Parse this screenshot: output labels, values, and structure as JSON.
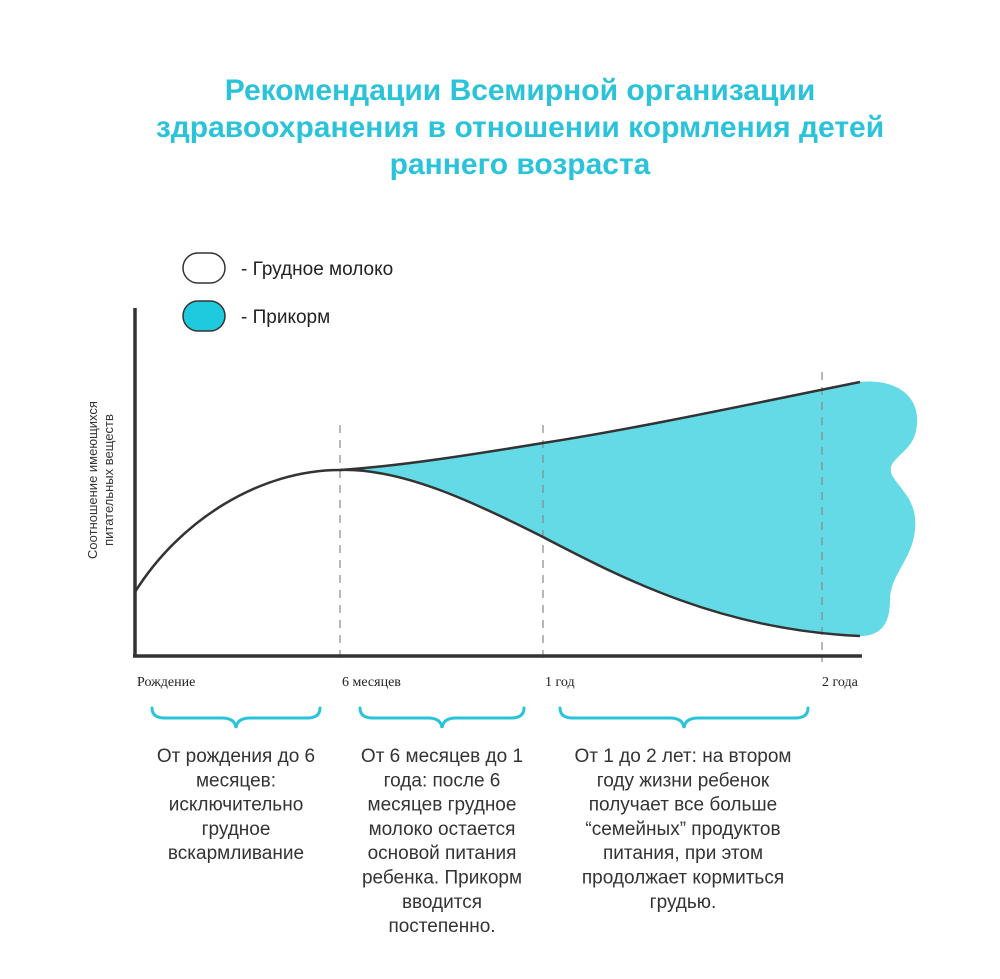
{
  "header": {
    "title_lines": [
      "Рекомендации Всемирной организации",
      "здравоохранения в отношении кормления детей",
      "раннего возраста"
    ]
  },
  "legend": [
    {
      "label": "- Грудное молоко"
    },
    {
      "label": "- Прикорм"
    }
  ],
  "y_axis_label_lines": [
    "Соотношение имеющихся",
    "питательных веществ"
  ],
  "x_labels": [
    "Рождение",
    "6 месяцев",
    "1 год",
    "2 года"
  ],
  "periods": [
    {
      "lines": [
        "От рождения до 6",
        "месяцев:",
        "исключительно",
        "грудное",
        "вскармливание"
      ]
    },
    {
      "lines": [
        "От 6 месяцев до 1",
        "года: после 6",
        "месяцев грудное",
        "молоко остается",
        "основой питания",
        "ребенка. Прикорм",
        "вводится",
        "постепенно."
      ]
    },
    {
      "lines": [
        "От 1 до 2 лет: на втором",
        "году жизни ребенок",
        "получает все больше",
        "“семейных” продуктов",
        "питания, при этом",
        "продолжает кормиться",
        "грудью."
      ]
    }
  ]
}
